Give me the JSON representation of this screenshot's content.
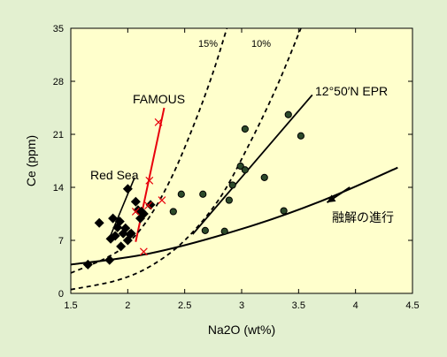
{
  "chart_data": {
    "type": "scatter",
    "xlabel": "Na2O (wt%)",
    "ylabel": "Ce (ppm)",
    "xlim": [
      1.5,
      4.5
    ],
    "ylim": [
      0,
      35
    ],
    "xticks": [
      "1.5",
      "2",
      "2.5",
      "3",
      "3.5",
      "4",
      "4.5"
    ],
    "yticks": [
      "0",
      "7",
      "14",
      "21",
      "28",
      "35"
    ],
    "grid": false,
    "colors": {
      "background": "#ffffcc",
      "page": "#e3f0d0",
      "famous": "#e8000b",
      "ink": "#000000",
      "epr_fill": "#2c4a2a"
    },
    "annotations": {
      "red_sea": "Red Sea",
      "famous": "FAMOUS",
      "epr": "12°50′N EPR",
      "melting": "融解の進行",
      "pct15": "15%",
      "pct10": "10%"
    },
    "series": [
      {
        "marker": "diamond",
        "points": [
          [
            1.65,
            3.8
          ],
          [
            1.75,
            9.3
          ],
          [
            1.84,
            4.4
          ],
          [
            1.85,
            7.2
          ],
          [
            1.87,
            9.9
          ],
          [
            1.89,
            7.6
          ],
          [
            1.91,
            8.7
          ],
          [
            1.93,
            9.5
          ],
          [
            1.94,
            6.2
          ],
          [
            1.96,
            7.9
          ],
          [
            1.98,
            8.6
          ],
          [
            2.0,
            7.0
          ],
          [
            2.0,
            13.8
          ],
          [
            2.02,
            7.8
          ],
          [
            2.03,
            7.9
          ],
          [
            2.07,
            12.1
          ],
          [
            2.09,
            11.0
          ],
          [
            2.11,
            9.9
          ],
          [
            2.12,
            10.8
          ],
          [
            2.14,
            10.5
          ],
          [
            2.2,
            11.7
          ]
        ]
      },
      {
        "marker": "cross",
        "points": [
          [
            2.14,
            5.5
          ],
          [
            2.18,
            11.6
          ],
          [
            2.19,
            14.9
          ],
          [
            2.27,
            22.6
          ],
          [
            2.3,
            12.3
          ],
          [
            2.07,
            10.8
          ]
        ]
      },
      {
        "marker": "circle",
        "points": [
          [
            2.4,
            10.8
          ],
          [
            2.47,
            13.1
          ],
          [
            2.66,
            13.1
          ],
          [
            2.68,
            8.3
          ],
          [
            2.85,
            8.2
          ],
          [
            2.89,
            12.3
          ],
          [
            2.92,
            14.3
          ],
          [
            2.99,
            16.8
          ],
          [
            3.03,
            21.7
          ],
          [
            3.03,
            16.3
          ],
          [
            3.2,
            15.3
          ],
          [
            3.37,
            10.9
          ],
          [
            3.41,
            23.6
          ],
          [
            3.52,
            20.8
          ]
        ]
      }
    ],
    "lines": [
      {
        "role": "famous",
        "points": [
          [
            2.07,
            6.8
          ],
          [
            2.32,
            24.5
          ]
        ]
      },
      {
        "role": "red-sea",
        "points": [
          [
            1.84,
            7.3
          ],
          [
            2.06,
            15.3
          ]
        ]
      },
      {
        "role": "epr",
        "points": [
          [
            2.57,
            7.8
          ],
          [
            3.62,
            26.2
          ]
        ]
      },
      {
        "role": "melting",
        "points": [
          [
            1.5,
            3.8
          ],
          [
            2.2,
            5.3
          ],
          [
            3.0,
            8.5
          ],
          [
            3.7,
            12.2
          ],
          [
            4.37,
            16.6
          ]
        ]
      },
      {
        "role": "pct15",
        "points": [
          [
            1.5,
            2.7
          ],
          [
            1.8,
            4.6
          ],
          [
            2.0,
            6.6
          ],
          [
            2.2,
            10.3
          ],
          [
            2.4,
            15.8
          ],
          [
            2.6,
            23.0
          ],
          [
            2.75,
            29.2
          ],
          [
            2.87,
            35.0
          ]
        ]
      },
      {
        "role": "pct10",
        "points": [
          [
            1.5,
            0.5
          ],
          [
            1.9,
            1.7
          ],
          [
            2.2,
            3.6
          ],
          [
            2.5,
            7.0
          ],
          [
            2.8,
            12.4
          ],
          [
            3.05,
            19.2
          ],
          [
            3.3,
            27.0
          ],
          [
            3.52,
            35.0
          ]
        ]
      },
      {
        "role": "arrow",
        "points": [
          [
            3.95,
            14.0
          ],
          [
            3.75,
            12.0
          ]
        ]
      }
    ]
  }
}
